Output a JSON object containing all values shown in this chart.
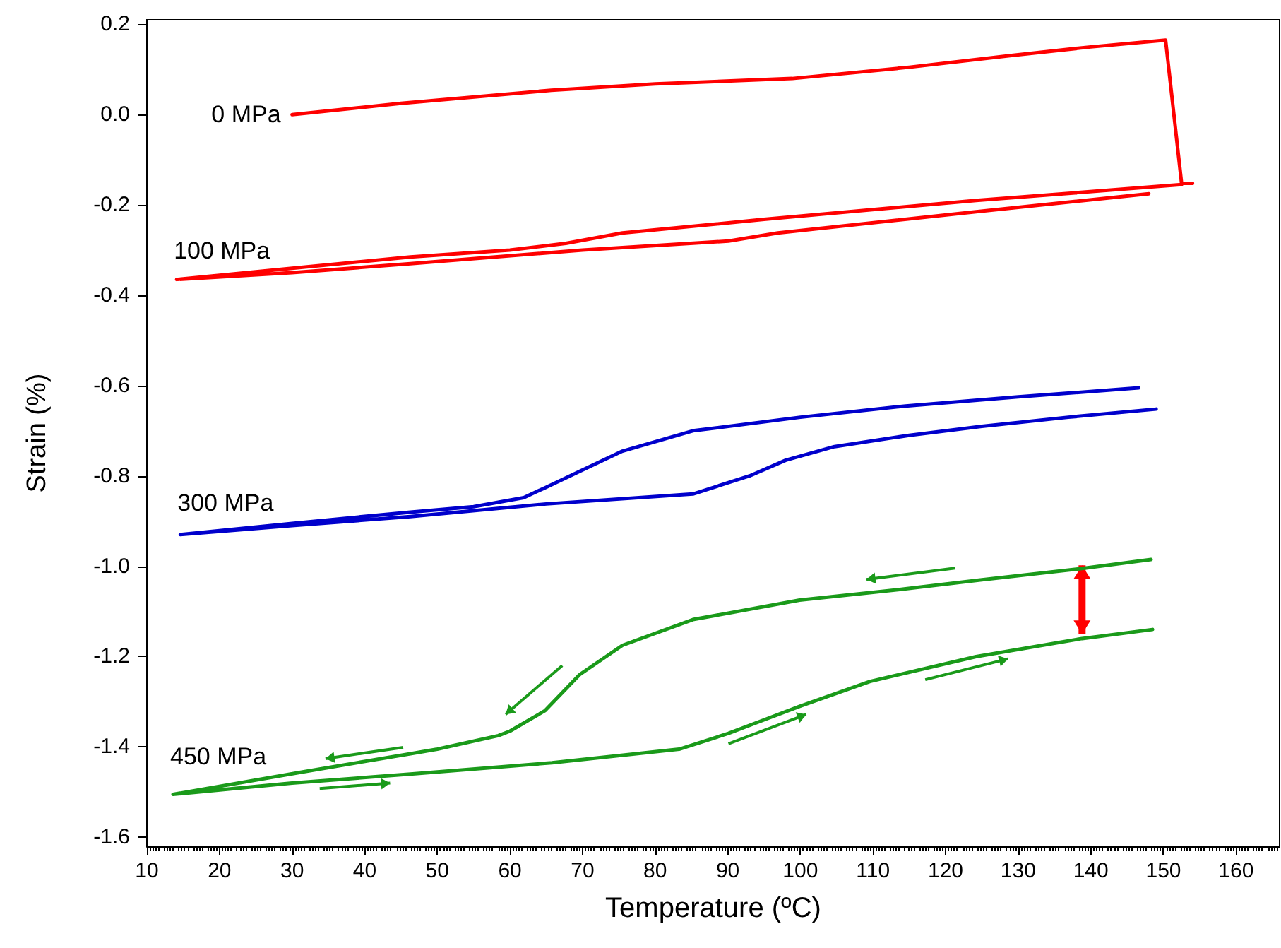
{
  "chart_data": {
    "type": "line",
    "xlabel": "Temperature (ºC)",
    "ylabel": "Strain (%)",
    "xlim": [
      10,
      166
    ],
    "xticks": [
      10,
      20,
      30,
      40,
      50,
      60,
      70,
      80,
      90,
      100,
      110,
      120,
      130,
      140,
      150,
      160
    ],
    "ylim": [
      -1.62,
      0.21
    ],
    "yticks": [
      -1.6,
      -1.4,
      -1.2,
      {
        "value": -1,
        "label": "-1.0"
      },
      -0.8,
      -0.6,
      -0.4,
      -0.2,
      {
        "value": 0,
        "label": "0.0"
      },
      0.2
    ],
    "grid": false,
    "legend": false,
    "series": [
      {
        "name": "0 MPa",
        "color": "#ff0000",
        "x": [
          30,
          45,
          65.7,
          80,
          98.9,
          115,
          129.1,
          140,
          150.3,
          152.5,
          154
        ],
        "values": [
          0.0,
          0.025,
          0.054,
          0.068,
          0.08,
          0.105,
          0.131,
          0.15,
          0.165,
          -0.152,
          -0.152
        ]
      },
      {
        "name": "100 MPa",
        "color": "#ff0000",
        "x": [
          152.5,
          124.2,
          95,
          75.5,
          67.7,
          60,
          46.3,
          30,
          14.1,
          30,
          46.3,
          70,
          90.1,
          96.9,
          124.2,
          148
        ],
        "values": [
          -0.155,
          -0.19,
          -0.232,
          -0.262,
          -0.285,
          -0.3,
          -0.315,
          -0.34,
          -0.365,
          -0.35,
          -0.33,
          -0.3,
          -0.28,
          -0.262,
          -0.215,
          -0.175
        ]
      },
      {
        "name": "300 MPa",
        "color": "#0000cc",
        "x": [
          146.6,
          130,
          114.5,
          100,
          85.2,
          75.5,
          69.6,
          65,
          61.9,
          55,
          46.3,
          30,
          14.6,
          30,
          46.3,
          65,
          85.2,
          93,
          98,
          104.7,
          115,
          125,
          136.9,
          149
        ],
        "values": [
          -0.605,
          -0.625,
          -0.645,
          -0.67,
          -0.7,
          -0.745,
          -0.79,
          -0.825,
          -0.848,
          -0.868,
          -0.88,
          -0.905,
          -0.93,
          -0.91,
          -0.89,
          -0.862,
          -0.84,
          -0.8,
          -0.765,
          -0.735,
          -0.71,
          -0.69,
          -0.67,
          -0.652
        ]
      },
      {
        "name": "450 MPa",
        "color": "#1a9a1a",
        "x": [
          148.3,
          138.8,
          125,
          114.5,
          99.9,
          85.2,
          75.5,
          69.6,
          64.8,
          60,
          58.4,
          50,
          46.3,
          31.6,
          13.6,
          30,
          46.3,
          65.8,
          83.3,
          90.1,
          95,
          99.9,
          109.6,
          124.2,
          138.8,
          148.5
        ],
        "values": [
          -0.985,
          -1.005,
          -1.03,
          -1.05,
          -1.075,
          -1.118,
          -1.175,
          -1.24,
          -1.32,
          -1.365,
          -1.375,
          -1.405,
          -1.415,
          -1.455,
          -1.505,
          -1.48,
          -1.46,
          -1.435,
          -1.405,
          -1.37,
          -1.34,
          -1.31,
          -1.255,
          -1.2,
          -1.16,
          -1.14
        ]
      }
    ]
  }
}
